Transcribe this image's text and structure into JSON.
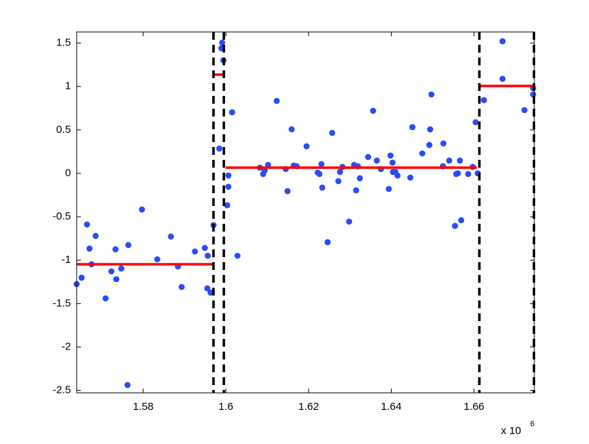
{
  "chart_data": {
    "type": "scatter",
    "x": [
      1.5639,
      1.5651,
      1.5664,
      1.567,
      1.5675,
      1.5685,
      1.5709,
      1.5723,
      1.5733,
      1.5735,
      1.5747,
      1.5764,
      1.5762,
      1.5797,
      1.5834,
      1.5867,
      1.5884,
      1.5893,
      1.5925,
      1.5949,
      1.5956,
      1.5955,
      1.5963,
      1.597,
      1.5984,
      1.5989,
      1.5991,
      1.5994,
      1.6003,
      1.6006,
      1.6006,
      1.6015,
      1.6028,
      1.6082,
      1.609,
      1.6094,
      1.6102,
      1.6123,
      1.6145,
      1.6149,
      1.6159,
      1.6164,
      1.6171,
      1.6195,
      1.6222,
      1.6226,
      1.6231,
      1.6233,
      1.6246,
      1.6257,
      1.6272,
      1.6276,
      1.6282,
      1.6298,
      1.631,
      1.6315,
      1.6319,
      1.6324,
      1.6344,
      1.6356,
      1.6365,
      1.6375,
      1.6394,
      1.6398,
      1.6403,
      1.6404,
      1.641,
      1.6415,
      1.6446,
      1.6451,
      1.6475,
      1.6492,
      1.6494,
      1.6497,
      1.6525,
      1.6526,
      1.654,
      1.6554,
      1.6557,
      1.6561,
      1.6566,
      1.6569,
      1.6586,
      1.6597,
      1.6604,
      1.6609,
      1.6624,
      1.6669,
      1.6669,
      1.6722,
      1.6743,
      1.6743
    ],
    "values": [
      -1.276,
      -1.202,
      -0.589,
      -0.867,
      -1.047,
      -0.72,
      -1.44,
      -1.129,
      -0.875,
      -1.219,
      -1.096,
      -0.826,
      -2.438,
      -0.417,
      -0.99,
      -0.728,
      -1.072,
      -1.309,
      -0.9,
      -0.859,
      -0.949,
      -1.325,
      -1.374,
      -0.597,
      0.286,
      1.44,
      1.505,
      1.301,
      -0.368,
      -0.025,
      -0.155,
      0.703,
      -0.949,
      0.065,
      -0.008,
      0.033,
      0.098,
      0.834,
      0.049,
      -0.205,
      0.507,
      0.09,
      0.082,
      0.311,
      0.008,
      -0.008,
      0.106,
      -0.164,
      -0.793,
      0.466,
      -0.09,
      0.016,
      0.074,
      -0.556,
      0.098,
      -0.196,
      0.082,
      -0.057,
      0.188,
      0.72,
      0.147,
      0.049,
      -0.18,
      0.205,
      0.123,
      0.016,
      0.016,
      -0.025,
      -0.049,
      0.532,
      0.229,
      0.327,
      0.507,
      0.908,
      0.082,
      0.344,
      0.147,
      -0.605,
      -0.008,
      0.0,
      0.147,
      -0.54,
      -0.008,
      0.074,
      0.589,
      0.0,
      0.843,
      1.521,
      1.088,
      0.728,
      0.982,
      0.908
    ],
    "color": "#2a4cf6",
    "segments": [
      {
        "x": [
          1.5639,
          1.597
        ],
        "y": -1.047
      },
      {
        "x": [
          1.5972,
          1.5996
        ],
        "y": 1.137
      },
      {
        "x": [
          1.5999,
          1.6607
        ],
        "y": 0.065
      },
      {
        "x": [
          1.6612,
          1.6746
        ],
        "y": 1.006
      }
    ],
    "segment_color": "#ff0000",
    "changepoints": [
      1.597,
      1.5995,
      1.6613,
      1.6745
    ],
    "changepoint_color": "#000000",
    "xlim": [
      1.5639,
      1.6746
    ],
    "ylim": [
      -2.528,
      1.628
    ],
    "xticks": [
      1.58,
      1.6,
      1.62,
      1.64,
      1.66
    ],
    "yticks": [
      -2.5,
      -2,
      -1.5,
      -1,
      -0.5,
      0,
      0.5,
      1,
      1.5
    ],
    "x_scale_label": "x 10",
    "x_scale_exponent": "6"
  }
}
